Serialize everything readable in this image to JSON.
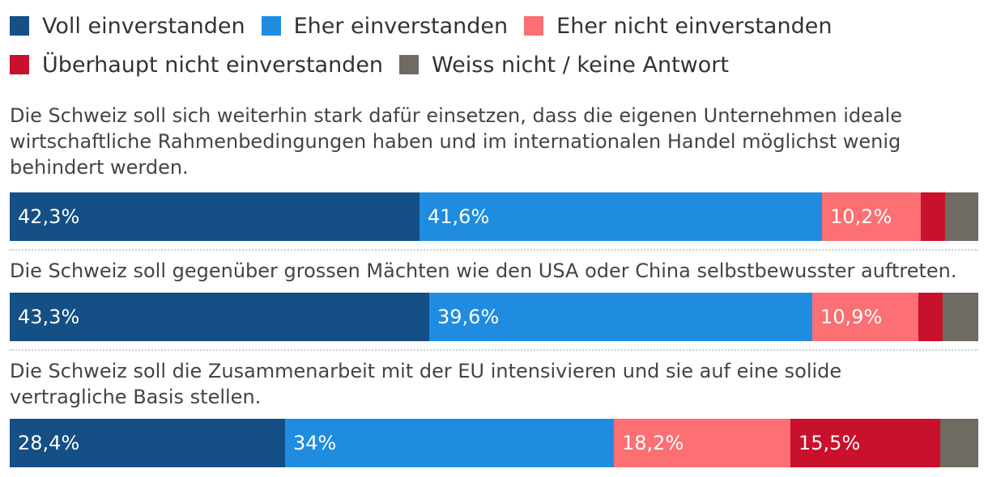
{
  "chart_data": {
    "type": "bar",
    "orientation": "horizontal",
    "stacked": true,
    "normalized_to_100": true,
    "legend_placement": "top",
    "legend": [
      {
        "key": "voll",
        "label": "Voll einverstanden",
        "color": "#144f85"
      },
      {
        "key": "eher",
        "label": "Eher einverstanden",
        "color": "#1f8ce0"
      },
      {
        "key": "eher_nicht",
        "label": "Eher nicht einverstanden",
        "color": "#fc6f73"
      },
      {
        "key": "ueberhaupt_nicht",
        "label": "Überhaupt nicht einverstanden",
        "color": "#c9102c"
      },
      {
        "key": "weiss_nicht",
        "label": "Weiss nicht / keine Antwort",
        "color": "#6f6a62"
      }
    ],
    "categories": [
      "Die Schweiz soll sich weiterhin stark dafür einsetzen, dass die eigenen Unternehmen ideale wirtschaftliche Rahmenbedingungen haben und im internationalen Handel möglichst wenig behindert werden.",
      "Die Schweiz soll gegenüber grossen Mächten wie den USA oder China selbstbewusster auftreten.",
      "Die Schweiz soll die Zusammenarbeit mit der EU intensivieren und sie auf eine solide vertragliche Basis stellen."
    ],
    "rows": [
      {
        "values": [
          42.3,
          41.6,
          10.2,
          2.5,
          3.4
        ],
        "labels": [
          "42,3%",
          "41,6%",
          "10,2%",
          "",
          ""
        ]
      },
      {
        "values": [
          43.3,
          39.6,
          10.9,
          2.5,
          3.7
        ],
        "labels": [
          "43,3%",
          "39,6%",
          "10,9%",
          "",
          ""
        ]
      },
      {
        "values": [
          28.4,
          34,
          18.2,
          15.5,
          3.9
        ],
        "labels": [
          "28,4%",
          "34%",
          "18,2%",
          "15,5%",
          ""
        ]
      }
    ]
  }
}
